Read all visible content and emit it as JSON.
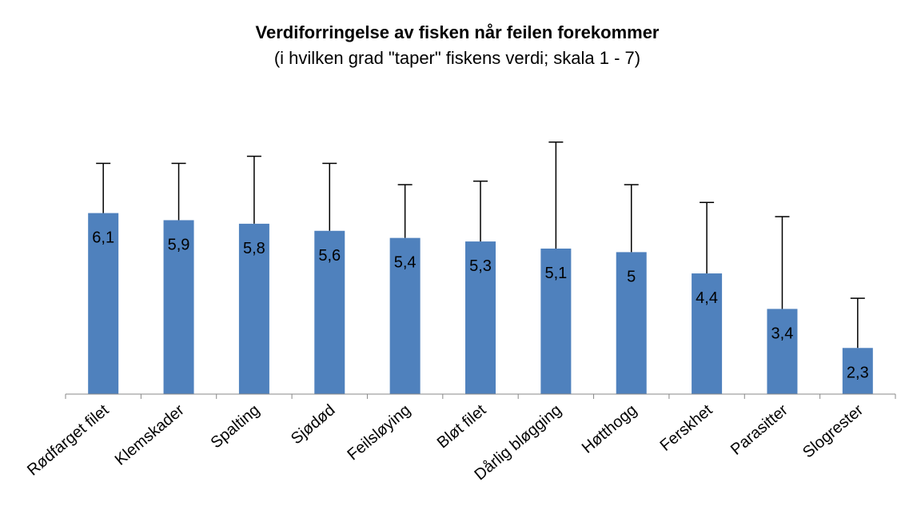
{
  "chart_data": {
    "type": "bar",
    "title": "Verdiforringelse av fisken når feilen forekommer",
    "subtitle": "(i hvilken grad \"taper\" fiskens verdi; skala 1 - 7)",
    "categories": [
      "Rødfarget filet",
      "Klemskader",
      "Spalting",
      "Sjødød",
      "Feilsløying",
      "Bløt filet",
      "Dårlig bløgging",
      "Høtthogg",
      "Ferskhet",
      "Parasitter",
      "Slogrester"
    ],
    "values": [
      6.1,
      5.9,
      5.8,
      5.6,
      5.4,
      5.3,
      5.1,
      5,
      4.4,
      3.4,
      2.3
    ],
    "value_labels": [
      "6,1",
      "5,9",
      "5,8",
      "5,6",
      "5,4",
      "5,3",
      "5,1",
      "5",
      "4,4",
      "3,4",
      "2,3"
    ],
    "errors": [
      1.4,
      1.6,
      1.9,
      1.9,
      1.5,
      1.7,
      3.0,
      1.9,
      2.0,
      2.6,
      1.4
    ],
    "color": "#4f81bd",
    "ylim": [
      1,
      8.5
    ]
  }
}
